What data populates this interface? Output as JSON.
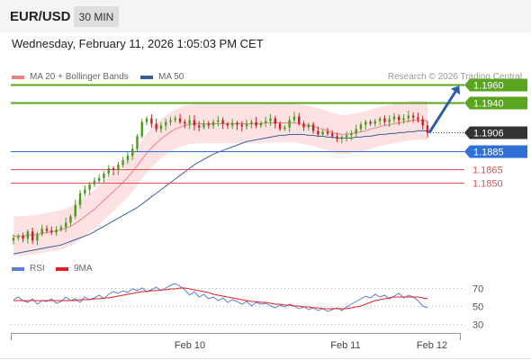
{
  "header": {
    "symbol": "EUR/USD",
    "timeframe": "30 MIN",
    "datetime": "Wednesday, February 11, 2026 1:05:03 PM CET"
  },
  "legend": {
    "ma20_label": "MA 20 + Bollinger Bands",
    "ma50_label": "MA 50",
    "credit": "Research © 2026 Trading Central"
  },
  "colors": {
    "resistance": "#5aa51e",
    "support": "#2f6fd6",
    "last_price": "#333333",
    "level_red": "#e05050",
    "ma20": "#f08080",
    "ma50": "#3a5f9a",
    "bollinger_fill": "#fbd8d8",
    "candle_up": "#4a9a20",
    "candle_down": "#c82020",
    "rsi": "#5b7fd6",
    "rsi_ma": "#e02020",
    "arrow": "#2d5ea8"
  },
  "chart_data": [
    {
      "type": "candlestick",
      "title": "EUR/USD",
      "price_range": [
        1.176,
        1.197
      ],
      "x_ticks": [
        "Feb 10",
        "Feb 11",
        "Feb 12"
      ],
      "levels": [
        {
          "label": "1.1960",
          "value": 1.196,
          "kind": "resistance"
        },
        {
          "label": "1.1940",
          "value": 1.194,
          "kind": "resistance"
        },
        {
          "label": "1.1906",
          "value": 1.1906,
          "kind": "last"
        },
        {
          "label": "1.1885",
          "value": 1.1885,
          "kind": "pivot"
        },
        {
          "label": "1.1865",
          "value": 1.1865,
          "kind": "support"
        },
        {
          "label": "1.1850",
          "value": 1.185,
          "kind": "support"
        }
      ],
      "close": [
        1.1788,
        1.179,
        1.1787,
        1.1795,
        1.1785,
        1.1792,
        1.1798,
        1.1796,
        1.1794,
        1.1797,
        1.18,
        1.1805,
        1.1812,
        1.1825,
        1.1838,
        1.1842,
        1.1848,
        1.1852,
        1.1855,
        1.186,
        1.1866,
        1.1864,
        1.187,
        1.1875,
        1.188,
        1.1888,
        1.1902,
        1.1918,
        1.1922,
        1.1916,
        1.191,
        1.1914,
        1.1918,
        1.192,
        1.1922,
        1.1918,
        1.1916,
        1.192,
        1.1914,
        1.1912,
        1.1916,
        1.1914,
        1.1918,
        1.192,
        1.1916,
        1.1914,
        1.1917,
        1.1915,
        1.1913,
        1.1916,
        1.1918,
        1.1914,
        1.1917,
        1.1919,
        1.1922,
        1.1916,
        1.191,
        1.1912,
        1.192,
        1.1924,
        1.1916,
        1.1912,
        1.1915,
        1.1908,
        1.1904,
        1.1907,
        1.1905,
        1.1902,
        1.1899,
        1.1901,
        1.1903,
        1.1905,
        1.191,
        1.1915,
        1.1918,
        1.1916,
        1.1919,
        1.1922,
        1.1918,
        1.1921,
        1.1924,
        1.192,
        1.1922,
        1.1925,
        1.1923,
        1.1921,
        1.1914,
        1.1906
      ],
      "ma20": [
        1.179,
        1.179,
        1.179,
        1.1791,
        1.1791,
        1.1792,
        1.1793,
        1.1794,
        1.1795,
        1.1796,
        1.1797,
        1.1799,
        1.1801,
        1.1804,
        1.1808,
        1.1812,
        1.1816,
        1.182,
        1.1825,
        1.183,
        1.1835,
        1.184,
        1.1845,
        1.185,
        1.1856,
        1.1862,
        1.1869,
        1.1876,
        1.1883,
        1.1889,
        1.1894,
        1.1899,
        1.1903,
        1.1907,
        1.191,
        1.1912,
        1.1914,
        1.1915,
        1.1916,
        1.1916,
        1.1916,
        1.1916,
        1.1916,
        1.1916,
        1.1916,
        1.1916,
        1.1916,
        1.1916,
        1.1916,
        1.1916,
        1.1916,
        1.1916,
        1.1916,
        1.1917,
        1.1917,
        1.1917,
        1.1917,
        1.1917,
        1.1917,
        1.1917,
        1.1916,
        1.1915,
        1.1914,
        1.1913,
        1.1911,
        1.191,
        1.1908,
        1.1906,
        1.1905,
        1.1904,
        1.1904,
        1.1905,
        1.1906,
        1.1907,
        1.1908,
        1.191,
        1.1911,
        1.1913,
        1.1914,
        1.1915,
        1.1916,
        1.1917,
        1.1918,
        1.1919,
        1.192,
        1.192,
        1.192,
        1.1919
      ],
      "ma50": [
        1.177,
        1.1771,
        1.1772,
        1.1773,
        1.1774,
        1.1775,
        1.1776,
        1.1777,
        1.1778,
        1.1779,
        1.178,
        1.1782,
        1.1784,
        1.1786,
        1.1788,
        1.179,
        1.1792,
        1.1795,
        1.1798,
        1.1801,
        1.1804,
        1.1807,
        1.181,
        1.1813,
        1.1816,
        1.1819,
        1.1822,
        1.1826,
        1.183,
        1.1834,
        1.1838,
        1.1842,
        1.1846,
        1.185,
        1.1854,
        1.1858,
        1.1862,
        1.1866,
        1.187,
        1.1873,
        1.1876,
        1.1879,
        1.1882,
        1.1884,
        1.1886,
        1.1888,
        1.189,
        1.1892,
        1.1894,
        1.1896,
        1.1897,
        1.1898,
        1.1899,
        1.19,
        1.1901,
        1.1902,
        1.1903,
        1.1903,
        1.1904,
        1.1904,
        1.1904,
        1.1904,
        1.1903,
        1.1903,
        1.1902,
        1.1902,
        1.1901,
        1.1901,
        1.19,
        1.19,
        1.19,
        1.19,
        1.1901,
        1.1901,
        1.1902,
        1.1902,
        1.1903,
        1.1904,
        1.1904,
        1.1905,
        1.1905,
        1.1906,
        1.1906,
        1.1907,
        1.1907,
        1.1908,
        1.1908,
        1.1908
      ],
      "bb_width": 0.0022
    },
    {
      "type": "line",
      "title": "RSI",
      "series": [
        {
          "name": "RSI",
          "values": [
            57,
            60,
            56,
            54,
            58,
            52,
            56,
            55,
            58,
            53,
            55,
            60,
            56,
            58,
            54,
            60,
            57,
            59,
            62,
            58,
            63,
            66,
            64,
            67,
            65,
            69,
            67,
            70,
            66,
            68,
            71,
            67,
            70,
            73,
            75,
            72,
            68,
            62,
            66,
            60,
            63,
            58,
            60,
            56,
            59,
            54,
            57,
            55,
            52,
            55,
            50,
            54,
            52,
            53,
            50,
            48,
            51,
            49,
            52,
            50,
            47,
            49,
            46,
            48,
            45,
            47,
            44,
            46,
            48,
            45,
            49,
            52,
            55,
            58,
            61,
            59,
            63,
            60,
            62,
            58,
            61,
            64,
            59,
            62,
            60,
            56,
            50,
            48
          ]
        },
        {
          "name": "9MA",
          "values": [
            56,
            56,
            56,
            56,
            56,
            56,
            56,
            56,
            56,
            56,
            56,
            56,
            56,
            56,
            57,
            57,
            57,
            58,
            58,
            59,
            59,
            60,
            61,
            62,
            63,
            64,
            65,
            66,
            66,
            67,
            67,
            68,
            68,
            69,
            69,
            70,
            70,
            69,
            68,
            67,
            66,
            65,
            63,
            62,
            61,
            60,
            59,
            58,
            57,
            56,
            55,
            55,
            54,
            54,
            53,
            52,
            52,
            51,
            51,
            50,
            50,
            49,
            49,
            48,
            48,
            47,
            47,
            47,
            47,
            47,
            47,
            48,
            49,
            50,
            52,
            54,
            56,
            57,
            58,
            59,
            60,
            60,
            60,
            60,
            60,
            60,
            59,
            58
          ]
        }
      ],
      "ylim": [
        20,
        85
      ],
      "y_ticks": [
        70,
        50,
        30
      ]
    }
  ]
}
